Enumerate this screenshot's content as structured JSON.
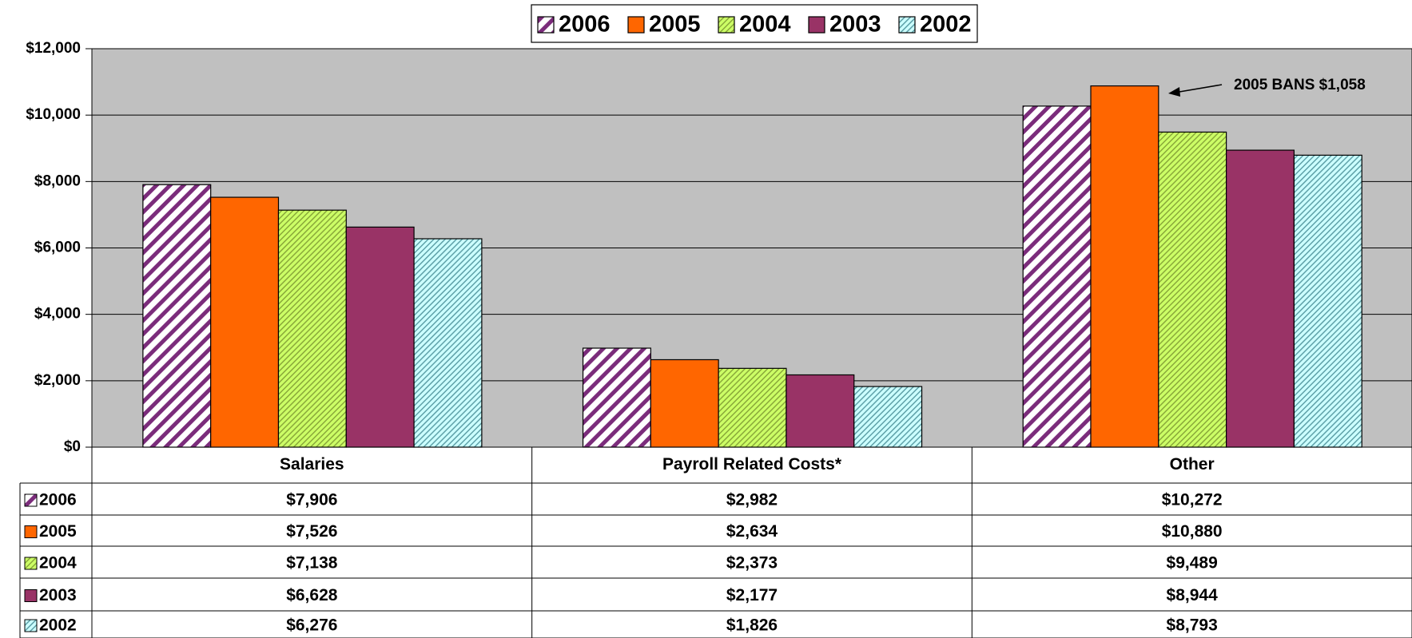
{
  "chart_data": {
    "type": "bar",
    "categories": [
      "Salaries",
      "Payroll Related Costs*",
      "Other"
    ],
    "series": [
      {
        "name": "2006",
        "color": "#ffffff",
        "hatch": "#7b2c7b",
        "values": [
          7906,
          2982,
          10272
        ],
        "value_labels": [
          "$7,906",
          "$2,982",
          "$10,272"
        ]
      },
      {
        "name": "2005",
        "color": "#ff6600",
        "hatch": null,
        "values": [
          7526,
          2634,
          10880
        ],
        "value_labels": [
          "$7,526",
          "$2,634",
          "$10,880"
        ]
      },
      {
        "name": "2004",
        "color": "#ccff66",
        "hatch": "#8aa83a",
        "values": [
          7138,
          2373,
          9489
        ],
        "value_labels": [
          "$7,138",
          "$2,373",
          "$9,489"
        ]
      },
      {
        "name": "2003",
        "color": "#993366",
        "hatch": null,
        "values": [
          6628,
          2177,
          8944
        ],
        "value_labels": [
          "$6,628",
          "$2,177",
          "$8,944"
        ]
      },
      {
        "name": "2002",
        "color": "#ccffff",
        "hatch": "#5fa0a8",
        "values": [
          6276,
          1826,
          8793
        ],
        "value_labels": [
          "$6,276",
          "$1,826",
          "$8,793"
        ]
      }
    ],
    "ylim": [
      0,
      12000
    ],
    "yticks": [
      {
        "value": 0,
        "label": "$0"
      },
      {
        "value": 2000,
        "label": "$2,000"
      },
      {
        "value": 4000,
        "label": "$4,000"
      },
      {
        "value": 6000,
        "label": "$6,000"
      },
      {
        "value": 8000,
        "label": "$8,000"
      },
      {
        "value": 10000,
        "label": "$10,000"
      },
      {
        "value": 12000,
        "label": "$12,000"
      }
    ],
    "grid": true,
    "plot_background": "#c0c0c0",
    "annotation": "2005 BANS $1,058"
  }
}
